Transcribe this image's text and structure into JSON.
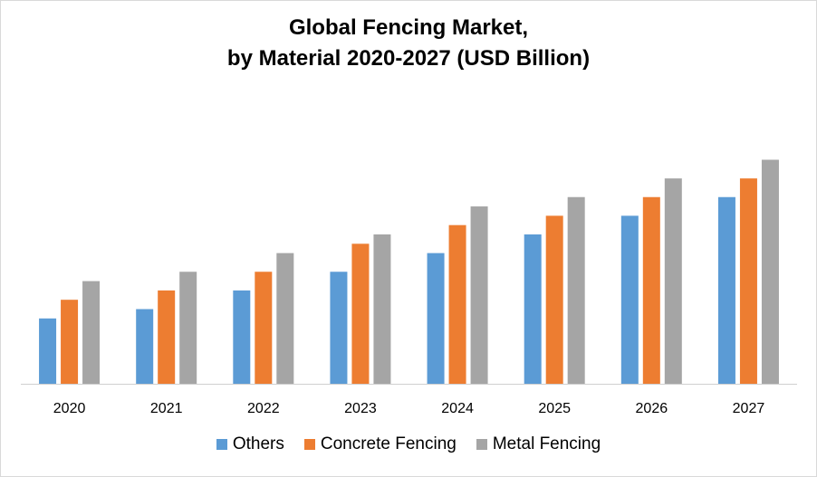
{
  "chart_data": {
    "type": "bar",
    "title_line1": "Global Fencing Market,",
    "title_line2": "by Material 2020-2027 (USD Billion)",
    "xlabel": "",
    "ylabel": "",
    "ylim": [
      0,
      12.8
    ],
    "grid": false,
    "legend_position": "bottom",
    "categories": [
      "2020",
      "2021",
      "2022",
      "2023",
      "2024",
      "2025",
      "2026",
      "2027"
    ],
    "series": [
      {
        "name": "Others",
        "color": "#5b9bd5",
        "values": [
          3.5,
          4,
          5,
          6,
          7,
          8,
          9,
          10
        ]
      },
      {
        "name": "Concrete Fencing",
        "color": "#ed7d31",
        "values": [
          4.5,
          5,
          6,
          7.5,
          8.5,
          9,
          10,
          11
        ]
      },
      {
        "name": "Metal Fencing",
        "color": "#a5a5a5",
        "values": [
          5.5,
          6,
          7,
          8,
          9.5,
          10,
          11,
          12
        ]
      }
    ]
  }
}
